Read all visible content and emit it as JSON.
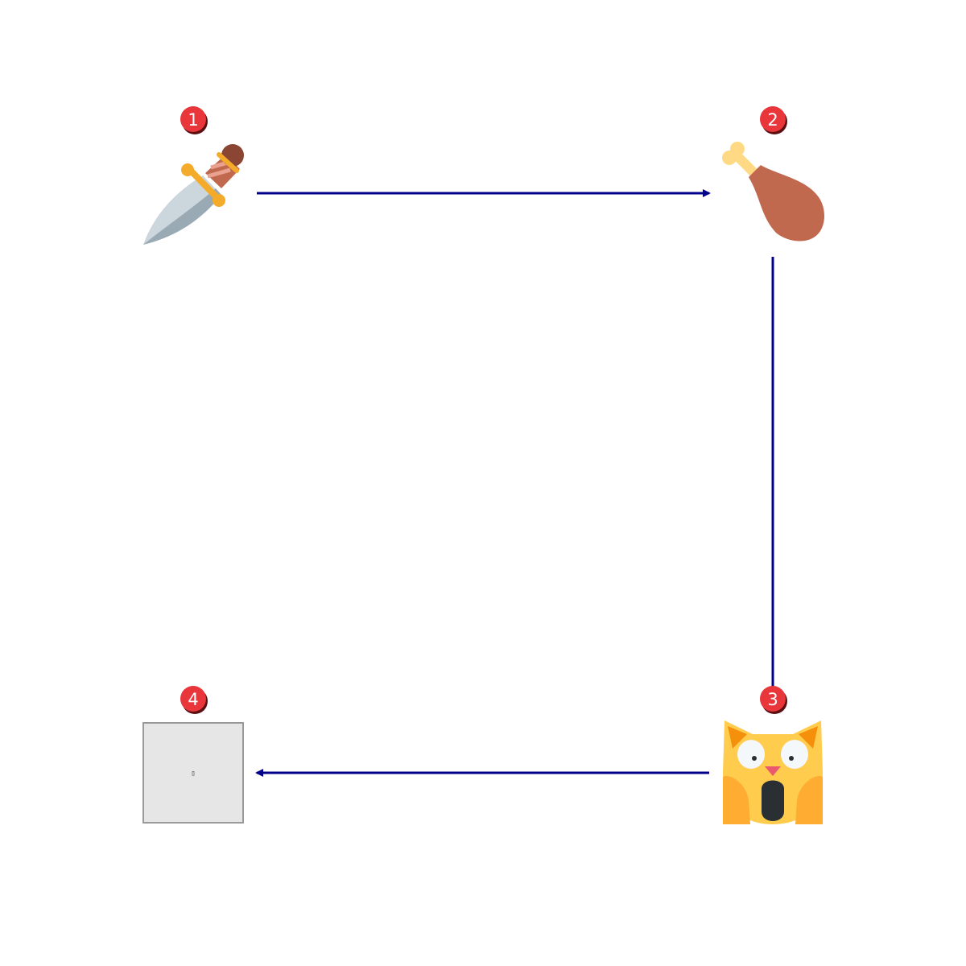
{
  "diagram": {
    "nodes": [
      {
        "id": "1",
        "badge": "1",
        "icon": "dagger-icon"
      },
      {
        "id": "2",
        "badge": "2",
        "icon": "poultry-leg-icon"
      },
      {
        "id": "3",
        "badge": "3",
        "icon": "weary-cat-icon"
      },
      {
        "id": "4",
        "badge": "4",
        "icon": "missing-glyph-icon",
        "glyph": "▯"
      }
    ],
    "edges": [
      {
        "from": "1",
        "to": "2"
      },
      {
        "from": "2",
        "to": "3"
      },
      {
        "from": "3",
        "to": "4"
      }
    ]
  },
  "colors": {
    "arrow": "#00008b",
    "badge_fill": "#e8363b",
    "badge_shadow": "#5a0f10",
    "placeholder_fill": "#e6e6e6",
    "placeholder_border": "#999999"
  }
}
